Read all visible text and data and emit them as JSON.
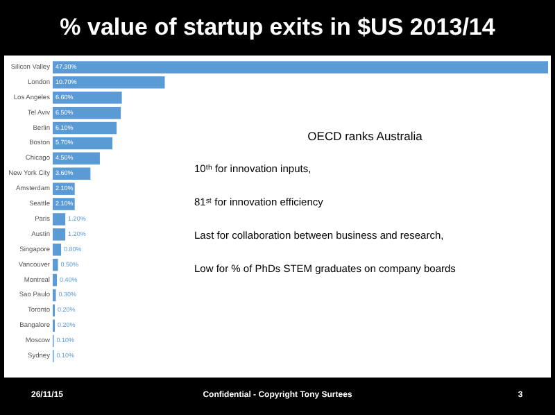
{
  "chart_data": {
    "type": "bar",
    "orientation": "horizontal",
    "title": "% value of startup exits in $US 2013/14",
    "categories": [
      "Silicon Valley",
      "London",
      "Los Angeles",
      "Tel Aviv",
      "Berlin",
      "Boston",
      "Chicago",
      "New York City",
      "Amsterdam",
      "Seattle",
      "Paris",
      "Austin",
      "Singapore",
      "Vancouver",
      "Montreal",
      "Sao Paulo",
      "Toronto",
      "Bangalore",
      "Moscow",
      "Sydney"
    ],
    "values": [
      47.3,
      10.7,
      6.6,
      6.5,
      6.1,
      5.7,
      4.5,
      3.6,
      2.1,
      2.1,
      1.2,
      1.2,
      0.8,
      0.5,
      0.4,
      0.3,
      0.2,
      0.2,
      0.1,
      0.1
    ],
    "value_labels": [
      "47.30%",
      "10.70%",
      "6.60%",
      "6.50%",
      "6.10%",
      "5.70%",
      "4.50%",
      "3.60%",
      "2.10%",
      "2.10%",
      "1.20%",
      "1.20%",
      "0.80%",
      "0.50%",
      "0.40%",
      "0.30%",
      "0.20%",
      "0.20%",
      "0.10%",
      "0.10%"
    ],
    "color": "#5b9bd5",
    "tick_labels": "y",
    "annotations": [
      "OECD ranks Australia",
      "10ᵗʰ for innovation inputs,",
      "81ˢᵗ for innovation efficiency",
      "Last for collaboration between business and research,",
      "Low for % of PhDs STEM graduates on company boards",
      "26/11/15",
      "Confidential - Copyright Tony Surtees",
      "3"
    ]
  }
}
